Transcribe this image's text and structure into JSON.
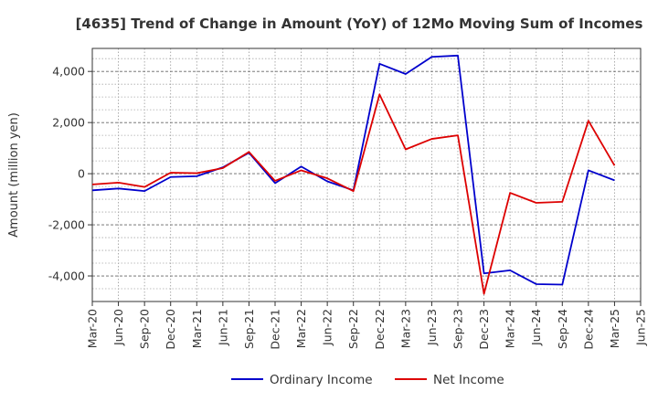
{
  "chart_data": {
    "type": "line",
    "title": "[4635]  Trend of Change in Amount (YoY) of 12Mo Moving Sum of Incomes",
    "xlabel": "",
    "ylabel": "Amount (million yen)",
    "ylim": [
      -5000,
      4900
    ],
    "yticks": [
      -4000,
      -2000,
      0,
      2000,
      4000
    ],
    "ytick_labels": [
      "-4,000",
      "-2,000",
      "0",
      "2,000",
      "4,000"
    ],
    "x_tick_labels": [
      "Mar-20",
      "Jun-20",
      "Sep-20",
      "Dec-20",
      "Mar-21",
      "Jun-21",
      "Sep-21",
      "Dec-21",
      "Mar-22",
      "Jun-22",
      "Sep-22",
      "Dec-22",
      "Mar-23",
      "Jun-23",
      "Sep-23",
      "Dec-23",
      "Mar-24",
      "Jun-24",
      "Sep-24",
      "Dec-24",
      "Mar-25",
      "Jun-25"
    ],
    "categories": [
      "Mar-20",
      "Jun-20",
      "Sep-20",
      "Dec-20",
      "Mar-21",
      "Jun-21",
      "Sep-21",
      "Dec-21",
      "Mar-22",
      "Jun-22",
      "Sep-22",
      "Dec-22",
      "Mar-23",
      "Jun-23",
      "Sep-23",
      "Dec-23",
      "Mar-24",
      "Jun-24",
      "Sep-24",
      "Dec-24",
      "Mar-25"
    ],
    "grid": true,
    "legend_position": "bottom-center",
    "series": [
      {
        "name": "Ordinary Income",
        "color": "#0000cc",
        "values": [
          -650,
          -580,
          -680,
          -130,
          -100,
          250,
          820,
          -370,
          280,
          -300,
          -650,
          4300,
          3900,
          4570,
          4620,
          -3900,
          -3780,
          -4320,
          -4340,
          130,
          -260
        ]
      },
      {
        "name": "Net Income",
        "color": "#dd0000",
        "values": [
          -420,
          -350,
          -520,
          40,
          20,
          220,
          850,
          -280,
          130,
          -180,
          -680,
          3100,
          950,
          1360,
          1500,
          -4700,
          -750,
          -1140,
          -1100,
          2070,
          320
        ]
      }
    ]
  }
}
